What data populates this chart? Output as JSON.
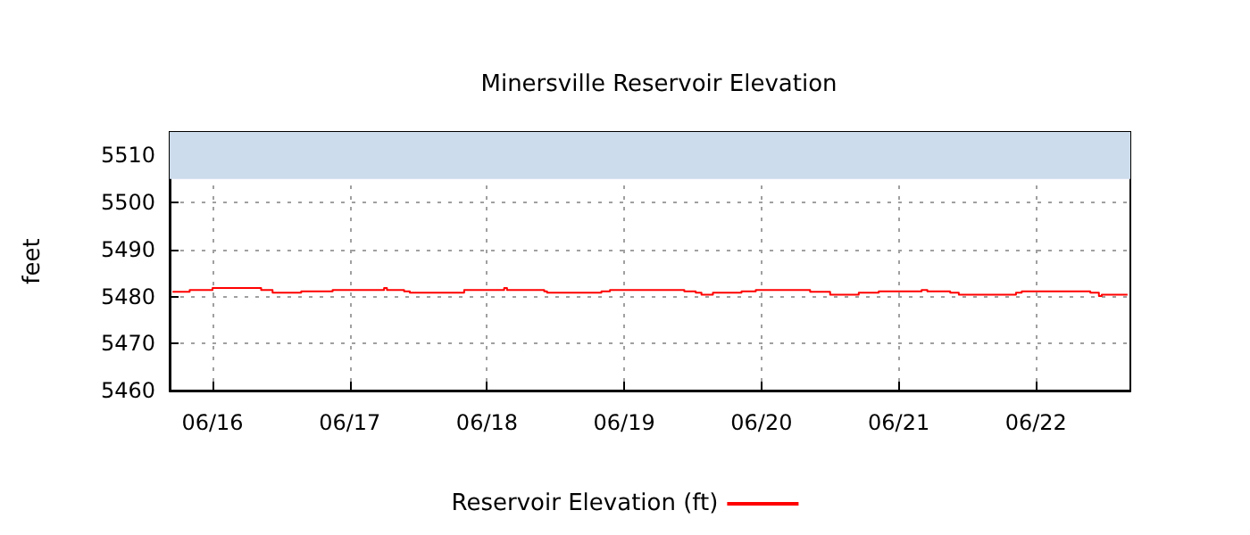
{
  "chart_data": {
    "type": "step",
    "title": "Minersville Reservoir Elevation",
    "ylabel": "feet",
    "x": [
      "--06-15T17:00",
      "--06-15T20:00",
      "--06-16T00:00",
      "--06-16T07:30",
      "--06-16T08:30",
      "--06-16T10:30",
      "--06-16T15:00",
      "--06-16T15:30",
      "--06-16T20:30",
      "--06-16T21:00",
      "--06-17T05:00",
      "--06-17T06:00",
      "--06-17T06:30",
      "--06-17T08:30",
      "--06-17T09:30",
      "--06-17T10:30",
      "--06-17T19:00",
      "--06-17T20:00",
      "--06-18T02:30",
      "--06-18T03:00",
      "--06-18T03:30",
      "--06-18T08:30",
      "--06-18T10:00",
      "--06-18T10:30",
      "--06-18T19:00",
      "--06-18T20:00",
      "--06-18T21:30",
      "--06-19T08:30",
      "--06-19T10:30",
      "--06-19T12:30",
      "--06-19T13:30",
      "--06-19T15:30",
      "--06-19T19:30",
      "--06-19T20:30",
      "--06-19T23:00",
      "--06-20T07:00",
      "--06-20T08:30",
      "--06-20T12:00",
      "--06-20T16:30",
      "--06-20T17:00",
      "--06-20T20:30",
      "--06-21T03:30",
      "--06-21T04:00",
      "--06-21T05:00",
      "--06-21T09:00",
      "--06-21T10:30",
      "--06-21T19:30",
      "--06-21T20:30",
      "--06-21T21:30",
      "--06-22T08:30",
      "--06-22T09:30",
      "--06-22T11:00",
      "--06-22T11:30",
      "--06-22T16:00"
    ],
    "series": [
      {
        "name": "Reservoir Elevation (ft)",
        "color": "#ff0000",
        "values": [
          5481.0,
          5481.4,
          5481.8,
          5481.8,
          5481.4,
          5480.8,
          5480.8,
          5481.1,
          5481.1,
          5481.4,
          5481.4,
          5481.8,
          5481.4,
          5481.4,
          5481.1,
          5480.8,
          5480.8,
          5481.4,
          5481.4,
          5481.8,
          5481.4,
          5481.4,
          5481.1,
          5480.8,
          5480.8,
          5481.1,
          5481.4,
          5481.4,
          5481.1,
          5480.8,
          5480.4,
          5480.8,
          5480.8,
          5481.1,
          5481.4,
          5481.4,
          5481.0,
          5480.4,
          5480.4,
          5480.8,
          5481.1,
          5481.1,
          5481.4,
          5481.1,
          5480.8,
          5480.4,
          5480.4,
          5480.8,
          5481.1,
          5481.1,
          5480.8,
          5480.1,
          5480.4,
          5480.4
        ]
      }
    ],
    "xlim": [
      "--06-15T16:30",
      "--06-22T16:30"
    ],
    "xticks": [
      {
        "value": "--06-16",
        "label": "06/16"
      },
      {
        "value": "--06-17",
        "label": "06/17"
      },
      {
        "value": "--06-18",
        "label": "06/18"
      },
      {
        "value": "--06-19",
        "label": "06/19"
      },
      {
        "value": "--06-20",
        "label": "06/20"
      },
      {
        "value": "--06-21",
        "label": "06/21"
      },
      {
        "value": "--06-22",
        "label": "06/22"
      }
    ],
    "ylim": [
      5460,
      5515
    ],
    "yticks": [
      5460,
      5470,
      5480,
      5490,
      5500,
      5510
    ],
    "bands": [
      {
        "axis": "y",
        "from": 5505,
        "to": 5515,
        "color": "#cddcec"
      }
    ],
    "grid": true,
    "legend": "bottom",
    "marker": "none",
    "line_style": "solid"
  }
}
